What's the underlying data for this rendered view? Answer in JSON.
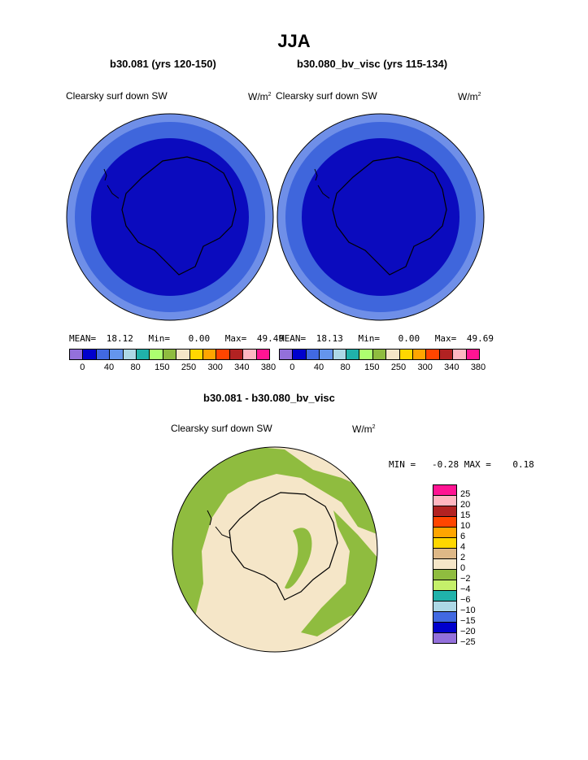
{
  "title": "JJA",
  "panels": [
    {
      "case_label": "b30.081 (yrs 120-150)",
      "variable": "Clearsky surf down SW",
      "units": "W/m",
      "units_sup": "2",
      "stats": {
        "mean_label": "MEAN=",
        "mean": "18.12",
        "min_label": "Min=",
        "min": "0.00",
        "max_label": "Max=",
        "max": "49.49"
      }
    },
    {
      "case_label": "b30.080_bv_visc (yrs 115-134)",
      "variable": "Clearsky surf down SW",
      "units": "W/m",
      "units_sup": "2",
      "stats": {
        "mean_label": "MEAN=",
        "mean": "18.13",
        "min_label": "Min=",
        "min": "0.00",
        "max_label": "Max=",
        "max": "49.69"
      }
    }
  ],
  "colorbar": {
    "colors": [
      "#9370db",
      "#0000cd",
      "#4169e1",
      "#6495ed",
      "#add8e6",
      "#20b2aa",
      "#adff6f",
      "#8fbc3f",
      "#f5e6c8",
      "#ffd700",
      "#ffa500",
      "#ff4500",
      "#b22222",
      "#ffb6c1",
      "#ff1493"
    ],
    "ticks": [
      "0",
      "40",
      "80",
      "150",
      "250",
      "300",
      "340",
      "380"
    ]
  },
  "diff": {
    "label": "b30.081 - b30.080_bv_visc",
    "variable": "Clearsky surf down SW",
    "units": "W/m",
    "units_sup": "2",
    "minmax_text": "MIN =   -0.28 MAX =    0.18",
    "colorbar": {
      "colors": [
        "#ff1493",
        "#ffb6c1",
        "#b22222",
        "#ff4500",
        "#ffa500",
        "#ffd700",
        "#deb887",
        "#f5e6c8",
        "#8fbc3f",
        "#c5f06a",
        "#20b2aa",
        "#add8e6",
        "#4169e1",
        "#0000cd",
        "#9370db"
      ],
      "ticks": [
        "25",
        "20",
        "15",
        "10",
        "6",
        "4",
        "2",
        "0",
        "−2",
        "−4",
        "−6",
        "−10",
        "−15",
        "−20",
        "−25"
      ]
    }
  }
}
